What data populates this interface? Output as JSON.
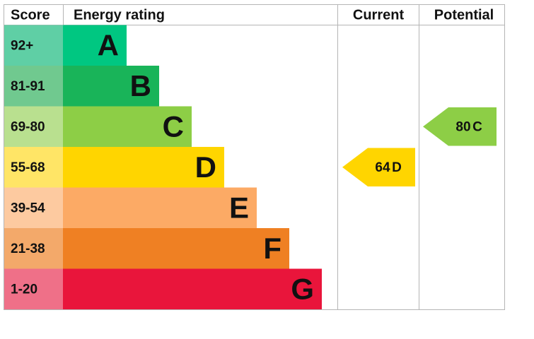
{
  "header": {
    "score": "Score",
    "rating": "Energy rating",
    "current": "Current",
    "potential": "Potential"
  },
  "rows": [
    {
      "score": "92+",
      "band": "A",
      "color": "#00c781",
      "score_color": "#5fcfa5"
    },
    {
      "score": "81-91",
      "band": "B",
      "color": "#19b459",
      "score_color": "#70c98f"
    },
    {
      "score": "69-80",
      "band": "C",
      "color": "#8dce46",
      "score_color": "#b9e08f"
    },
    {
      "score": "55-68",
      "band": "D",
      "color": "#ffd500",
      "score_color": "#ffe566"
    },
    {
      "score": "39-54",
      "band": "E",
      "color": "#fcaa65",
      "score_color": "#fdcaa0"
    },
    {
      "score": "21-38",
      "band": "F",
      "color": "#ef8023",
      "score_color": "#f3a96a"
    },
    {
      "score": "1-20",
      "band": "G",
      "color": "#e9153b",
      "score_color": "#ef7088"
    }
  ],
  "current": {
    "value": 64,
    "band": "D"
  },
  "potential": {
    "value": 80,
    "band": "C"
  }
}
